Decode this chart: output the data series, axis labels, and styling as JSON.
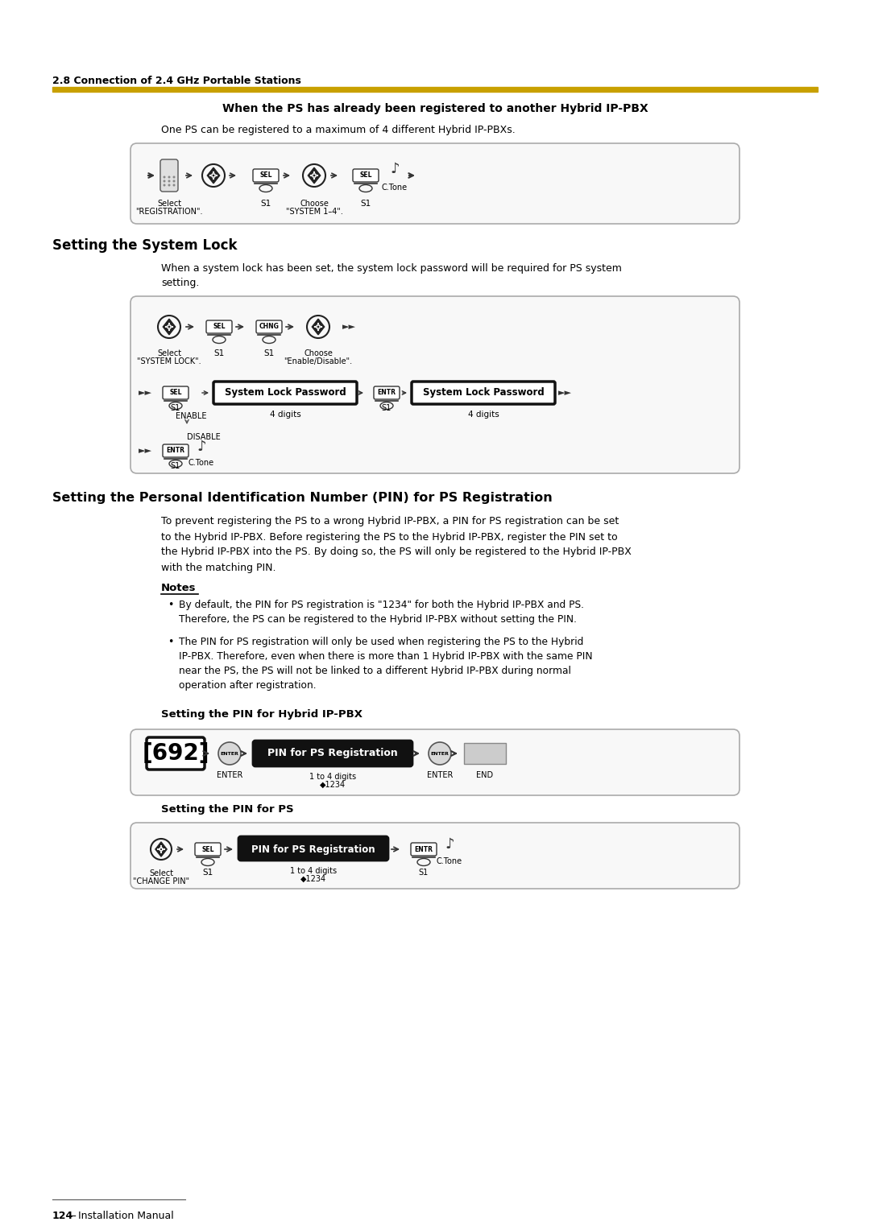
{
  "bg_color": "#ffffff",
  "page_width": 10.8,
  "page_height": 15.28,
  "header_section": "2.8 Connection of 2.4 GHz Portable Stations",
  "gold_bar_color": "#C8A000",
  "section1_title": "When the PS has already been registered to another Hybrid IP-PBX",
  "section1_body": "One PS can be registered to a maximum of 4 different Hybrid IP-PBXs.",
  "section2_title": "Setting the System Lock",
  "section2_body": "When a system lock has been set, the system lock password will be required for PS system\nsetting.",
  "section3_title": "Setting the Personal Identification Number (PIN) for PS Registration",
  "section3_body": "To prevent registering the PS to a wrong Hybrid IP-PBX, a PIN for PS registration can be set\nto the Hybrid IP-PBX. Before registering the PS to the Hybrid IP-PBX, register the PIN set to\nthe Hybrid IP-PBX into the PS. By doing so, the PS will only be registered to the Hybrid IP-PBX\nwith the matching PIN.",
  "notes_title": "Notes",
  "note1": "By default, the PIN for PS registration is \"1234\" for both the Hybrid IP-PBX and PS.\nTherefore, the PS can be registered to the Hybrid IP-PBX without setting the PIN.",
  "note2": "The PIN for PS registration will only be used when registering the PS to the Hybrid\nIP-PBX. Therefore, even when there is more than 1 Hybrid IP-PBX with the same PIN\nnear the PS, the PS will not be linked to a different Hybrid IP-PBX during normal\noperation after registration.",
  "pin_hybrid_title": "Setting the PIN for Hybrid IP-PBX",
  "pin_ps_title": "Setting the PIN for PS",
  "footer_text": "124",
  "footer_sep": "Installation Manual",
  "box_bg": "#f5f5f5",
  "box_border": "#aaaaaa"
}
